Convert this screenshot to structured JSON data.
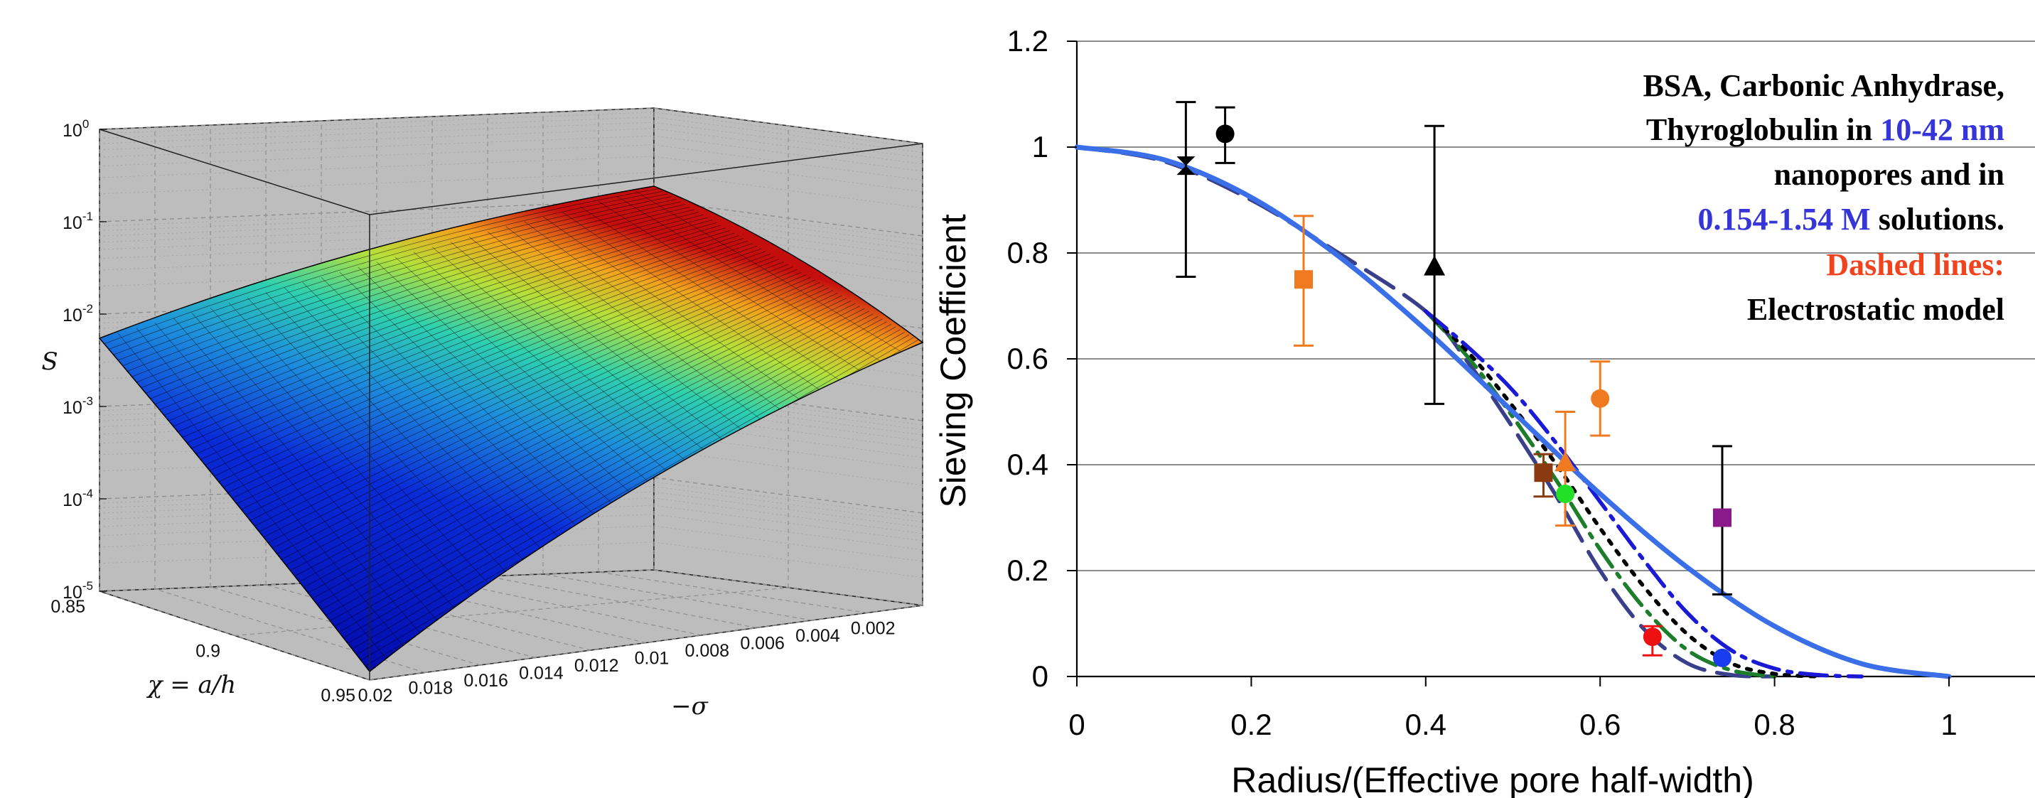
{
  "chart_data": [
    {
      "type": "surface",
      "zlabel": "S",
      "xlabel": "−σ",
      "ylabel": "χ = a/h",
      "x_ticks": [
        "0.02",
        "0.018",
        "0.016",
        "0.014",
        "0.012",
        "0.01",
        "0.008",
        "0.006",
        "0.004",
        "0.002"
      ],
      "x_tick_values": [
        0.02,
        0.018,
        0.016,
        0.014,
        0.012,
        0.01,
        0.008,
        0.006,
        0.004,
        0.002
      ],
      "y_ticks": [
        "0.85",
        "0.9",
        "0.95"
      ],
      "y_tick_values": [
        0.85,
        0.9,
        0.95
      ],
      "z_ticks": [
        {
          "base": "10",
          "exp": "0"
        },
        {
          "base": "10",
          "exp": "-1"
        },
        {
          "base": "10",
          "exp": "-2"
        },
        {
          "base": "10",
          "exp": "-3"
        },
        {
          "base": "10",
          "exp": "-4"
        },
        {
          "base": "10",
          "exp": "-5"
        }
      ],
      "zscale": "log",
      "zlim": [
        1e-05,
        1
      ],
      "xlim": [
        0,
        0.02
      ],
      "ylim": [
        0.85,
        0.95
      ],
      "corner_values": {
        "sigma_0.02_chi_0.85": 0.01,
        "sigma_0.02_chi_0.95": 1e-05,
        "sigma_0_chi_0.85": 0.3,
        "sigma_0_chi_0.95": 0.008
      },
      "colormap": "jet",
      "grid": true,
      "background": "#bdbdbd"
    },
    {
      "type": "line",
      "xlabel": "Radius/(Effective pore half-width)",
      "ylabel": "Sieving Coefficient",
      "xlim": [
        0,
        1
      ],
      "ylim": [
        0,
        1.2
      ],
      "x_ticks": [
        "0",
        "0.2",
        "0.4",
        "0.6",
        "0.8",
        "1"
      ],
      "x_tick_values": [
        0,
        0.2,
        0.4,
        0.6,
        0.8,
        1
      ],
      "y_ticks": [
        "0",
        "0.2",
        "0.4",
        "0.6",
        "0.8",
        "1",
        "1.2"
      ],
      "y_tick_values": [
        0,
        0.2,
        0.4,
        0.6,
        0.8,
        1,
        1.2
      ],
      "grid": "horizontal",
      "series": [
        {
          "style": "solid",
          "color": "#3b6fe8",
          "x": [
            0,
            0.1,
            0.2,
            0.3,
            0.4,
            0.5,
            0.6,
            0.7,
            0.8,
            0.9,
            1.0
          ],
          "y": [
            1.0,
            0.976,
            0.905,
            0.794,
            0.655,
            0.5,
            0.345,
            0.206,
            0.095,
            0.024,
            0.0
          ]
        },
        {
          "style": "dash-dot",
          "color": "#1a1ad6",
          "x": [
            0.4,
            0.45,
            0.5,
            0.55,
            0.6,
            0.65,
            0.7,
            0.75,
            0.8,
            0.85,
            0.9
          ],
          "y": [
            0.69,
            0.62,
            0.54,
            0.44,
            0.33,
            0.22,
            0.12,
            0.05,
            0.015,
            0.003,
            0.0
          ]
        },
        {
          "style": "dotted",
          "color": "#000000",
          "x": [
            0.4,
            0.45,
            0.5,
            0.55,
            0.6,
            0.65,
            0.7,
            0.75,
            0.8,
            0.85
          ],
          "y": [
            0.69,
            0.61,
            0.51,
            0.4,
            0.28,
            0.17,
            0.08,
            0.025,
            0.005,
            0.0
          ]
        },
        {
          "style": "dash-dot",
          "color": "#1c7d2a",
          "x": [
            0.4,
            0.45,
            0.5,
            0.55,
            0.6,
            0.65,
            0.7,
            0.75,
            0.8
          ],
          "y": [
            0.69,
            0.6,
            0.49,
            0.37,
            0.24,
            0.13,
            0.05,
            0.012,
            0.0
          ]
        },
        {
          "style": "dashed",
          "color": "#3a3f8c",
          "x": [
            0,
            0.1,
            0.2,
            0.3,
            0.4,
            0.45,
            0.5,
            0.55,
            0.6,
            0.65,
            0.7,
            0.75,
            0.8
          ],
          "y": [
            1.0,
            0.973,
            0.9,
            0.8,
            0.69,
            0.59,
            0.47,
            0.34,
            0.2,
            0.09,
            0.025,
            0.003,
            0.0
          ]
        }
      ],
      "points": [
        {
          "x": 0.125,
          "y": 0.965,
          "marker": "hourglass",
          "color": "#000000",
          "err_low": 0.755,
          "err_high": 1.085
        },
        {
          "x": 0.17,
          "y": 1.025,
          "marker": "circle",
          "color": "#000000",
          "err_low": 0.97,
          "err_high": 1.075
        },
        {
          "x": 0.26,
          "y": 0.75,
          "marker": "square",
          "color": "#f07a1f",
          "err_low": 0.625,
          "err_high": 0.87
        },
        {
          "x": 0.41,
          "y": 0.775,
          "marker": "triangle",
          "color": "#000000",
          "err_low": 0.515,
          "err_high": 1.04
        },
        {
          "x": 0.535,
          "y": 0.385,
          "marker": "square",
          "color": "#8b3a10",
          "err_low": 0.34,
          "err_high": 0.42
        },
        {
          "x": 0.56,
          "y": 0.405,
          "marker": "triangle",
          "color": "#f07a1f",
          "err_low": 0.285,
          "err_high": 0.5
        },
        {
          "x": 0.6,
          "y": 0.525,
          "marker": "circle",
          "color": "#f07a1f",
          "err_low": 0.455,
          "err_high": 0.595
        },
        {
          "x": 0.56,
          "y": 0.345,
          "marker": "circle",
          "color": "#22e026",
          "err_low": 0.345,
          "err_high": 0.345
        },
        {
          "x": 0.66,
          "y": 0.075,
          "marker": "circle",
          "color": "#ee1111",
          "err_low": 0.04,
          "err_high": 0.095
        },
        {
          "x": 0.74,
          "y": 0.3,
          "marker": "square",
          "color": "#8a1a8a",
          "err_low": 0.155,
          "err_high": 0.435
        },
        {
          "x": 0.74,
          "y": 0.035,
          "marker": "circle",
          "color": "#1a3cf0",
          "err_low": 0.035,
          "err_high": 0.035
        }
      ],
      "annotation_lines": [
        [
          {
            "text": "BSA, Carbonic Anhydrase,",
            "color": "#000000"
          }
        ],
        [
          {
            "text": "Thyroglobulin in ",
            "color": "#000000"
          },
          {
            "text": "10-42 nm",
            "color": "#3535d8"
          }
        ],
        [
          {
            "text": "nanopores and in",
            "color": "#000000"
          }
        ],
        [
          {
            "text": "0.154-1.54 M",
            "color": "#3535d8"
          },
          {
            "text": " solutions.",
            "color": "#000000"
          }
        ],
        [
          {
            "text": "Dashed lines:",
            "color": "#f2431f"
          }
        ],
        [
          {
            "text": "Electrostatic model",
            "color": "#000000"
          }
        ]
      ]
    }
  ]
}
